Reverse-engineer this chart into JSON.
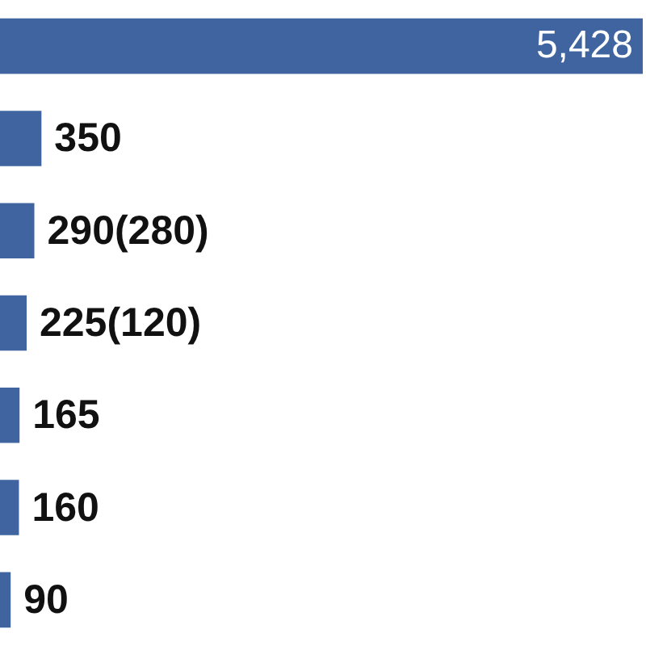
{
  "chart_data": {
    "type": "bar",
    "orientation": "horizontal",
    "categories": [
      null,
      null,
      null,
      null,
      null,
      null,
      null
    ],
    "values": [
      5428,
      350,
      290,
      225,
      165,
      160,
      90
    ],
    "value_labels": [
      "5,428",
      "350",
      "290(280)",
      "225(120)",
      "165",
      "160",
      "90"
    ],
    "color": "#3f64a0"
  }
}
